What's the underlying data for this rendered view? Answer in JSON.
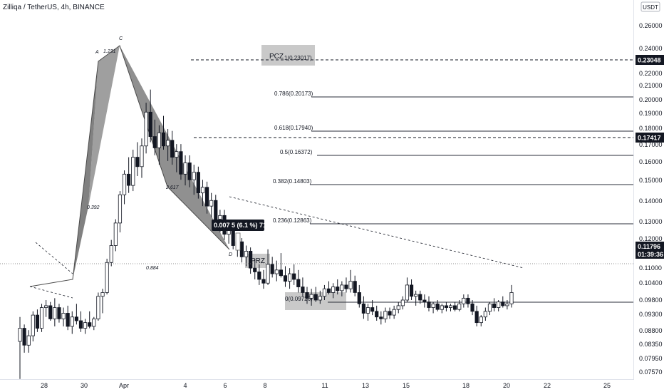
{
  "header": {
    "title": "Zilliqa / TetherUS, 4h, BINANCE",
    "currency": "USDT"
  },
  "colors": {
    "candle": "#131722",
    "pattern_fill": "#6b6b6b",
    "zone_fill": "#c9c9c9",
    "fib_line": "#2a2e39",
    "price_badge": "#131722"
  },
  "chart_data": {
    "type": "candlestick",
    "symbol": "Zilliqa / TetherUS",
    "timeframe": "4h",
    "exchange": "BINANCE",
    "y_axis_labels": [
      "0.26000",
      "0.24000",
      "0.23048",
      "0.22000",
      "0.21000",
      "0.20000",
      "0.19000",
      "0.18000",
      "0.17417",
      "0.17000",
      "0.16000",
      "0.15000",
      "0.14000",
      "0.13000",
      "0.12000",
      "0.11796",
      "0.11000",
      "0.10400",
      "0.09800",
      "0.09300",
      "0.08800",
      "0.08350",
      "0.07950",
      "0.07570"
    ],
    "ylim": [
      0.0735,
      0.2705
    ],
    "x_axis_labels": [
      "28",
      "30",
      "Apr",
      "4",
      "6",
      "8",
      "11",
      "13",
      "15",
      "18",
      "20",
      "22",
      "25"
    ],
    "price_badges": [
      {
        "value": "0.23048"
      },
      {
        "value": "0.17417"
      },
      {
        "value": "0.11796",
        "sub": "01:39:36"
      }
    ],
    "fib_levels": [
      {
        "label": "1(0.23017)",
        "value": 0.23017
      },
      {
        "label": "0.786(0.20173)",
        "value": 0.20173
      },
      {
        "label": "0.618(0.17940)",
        "value": 0.1794
      },
      {
        "label": "0.5(0.16372)",
        "value": 0.16372
      },
      {
        "label": "0.382(0.14803)",
        "value": 0.14803
      },
      {
        "label": "0.236(0.12863)",
        "value": 0.12863
      },
      {
        "label": "0(0.09726)",
        "value": 0.09726
      }
    ],
    "zones": [
      "PCZ",
      "PRZ"
    ],
    "pattern_points": [
      "A",
      "C",
      "D"
    ],
    "pattern_ratios": [
      "1.231",
      "0.392",
      "2.617",
      "0.884"
    ],
    "measure_label": "0.007 5 (6.1 %) 715",
    "candles": [
      [
        0.092,
        0.105,
        0.072,
        0.099
      ],
      [
        0.099,
        0.101,
        0.086,
        0.09
      ],
      [
        0.09,
        0.098,
        0.086,
        0.095
      ],
      [
        0.095,
        0.108,
        0.092,
        0.106
      ],
      [
        0.106,
        0.109,
        0.097,
        0.099
      ],
      [
        0.099,
        0.112,
        0.097,
        0.11
      ],
      [
        0.11,
        0.114,
        0.105,
        0.111
      ],
      [
        0.111,
        0.113,
        0.103,
        0.104
      ],
      [
        0.104,
        0.115,
        0.1,
        0.11
      ],
      [
        0.11,
        0.112,
        0.102,
        0.104
      ],
      [
        0.104,
        0.11,
        0.1,
        0.107
      ],
      [
        0.107,
        0.111,
        0.098,
        0.1
      ],
      [
        0.1,
        0.108,
        0.096,
        0.105
      ],
      [
        0.105,
        0.112,
        0.101,
        0.103
      ],
      [
        0.103,
        0.108,
        0.097,
        0.099
      ],
      [
        0.099,
        0.104,
        0.096,
        0.102
      ],
      [
        0.102,
        0.108,
        0.099,
        0.1
      ],
      [
        0.1,
        0.105,
        0.098,
        0.104
      ],
      [
        0.104,
        0.118,
        0.103,
        0.116
      ],
      [
        0.116,
        0.12,
        0.107,
        0.118
      ],
      [
        0.118,
        0.136,
        0.117,
        0.134
      ],
      [
        0.134,
        0.146,
        0.132,
        0.143
      ],
      [
        0.143,
        0.157,
        0.14,
        0.155
      ],
      [
        0.155,
        0.172,
        0.15,
        0.17
      ],
      [
        0.17,
        0.183,
        0.165,
        0.181
      ],
      [
        0.181,
        0.19,
        0.171,
        0.175
      ],
      [
        0.175,
        0.194,
        0.172,
        0.19
      ],
      [
        0.19,
        0.198,
        0.18,
        0.185
      ],
      [
        0.185,
        0.2,
        0.179,
        0.196
      ],
      [
        0.196,
        0.219,
        0.192,
        0.214
      ],
      [
        0.214,
        0.226,
        0.198,
        0.201
      ],
      [
        0.201,
        0.21,
        0.191,
        0.195
      ],
      [
        0.195,
        0.207,
        0.186,
        0.203
      ],
      [
        0.203,
        0.212,
        0.194,
        0.196
      ],
      [
        0.196,
        0.205,
        0.188,
        0.199
      ],
      [
        0.199,
        0.204,
        0.186,
        0.19
      ],
      [
        0.19,
        0.197,
        0.182,
        0.193
      ],
      [
        0.193,
        0.197,
        0.178,
        0.181
      ],
      [
        0.181,
        0.191,
        0.175,
        0.187
      ],
      [
        0.187,
        0.191,
        0.174,
        0.178
      ],
      [
        0.178,
        0.186,
        0.17,
        0.182
      ],
      [
        0.182,
        0.185,
        0.168,
        0.171
      ],
      [
        0.171,
        0.178,
        0.164,
        0.174
      ],
      [
        0.174,
        0.177,
        0.16,
        0.164
      ],
      [
        0.164,
        0.171,
        0.158,
        0.167
      ],
      [
        0.167,
        0.17,
        0.154,
        0.157
      ],
      [
        0.157,
        0.162,
        0.15,
        0.159
      ],
      [
        0.159,
        0.162,
        0.146,
        0.149
      ],
      [
        0.149,
        0.156,
        0.144,
        0.152
      ],
      [
        0.152,
        0.156,
        0.141,
        0.143
      ],
      [
        0.143,
        0.148,
        0.137,
        0.145
      ],
      [
        0.145,
        0.147,
        0.134,
        0.137
      ],
      [
        0.137,
        0.143,
        0.132,
        0.14
      ],
      [
        0.14,
        0.142,
        0.128,
        0.131
      ],
      [
        0.131,
        0.136,
        0.125,
        0.129
      ],
      [
        0.129,
        0.133,
        0.122,
        0.125
      ],
      [
        0.125,
        0.13,
        0.12,
        0.123
      ],
      [
        0.123,
        0.141,
        0.122,
        0.133
      ],
      [
        0.133,
        0.137,
        0.126,
        0.128
      ],
      [
        0.128,
        0.135,
        0.124,
        0.13
      ],
      [
        0.13,
        0.139,
        0.126,
        0.127
      ],
      [
        0.127,
        0.132,
        0.121,
        0.124
      ],
      [
        0.124,
        0.131,
        0.12,
        0.128
      ],
      [
        0.128,
        0.133,
        0.122,
        0.125
      ],
      [
        0.125,
        0.13,
        0.118,
        0.121
      ],
      [
        0.121,
        0.126,
        0.116,
        0.118
      ],
      [
        0.118,
        0.121,
        0.112,
        0.115
      ],
      [
        0.115,
        0.12,
        0.111,
        0.117
      ],
      [
        0.117,
        0.121,
        0.113,
        0.114
      ],
      [
        0.114,
        0.119,
        0.112,
        0.116
      ],
      [
        0.116,
        0.122,
        0.114,
        0.12
      ],
      [
        0.12,
        0.124,
        0.117,
        0.118
      ],
      [
        0.118,
        0.123,
        0.115,
        0.121
      ],
      [
        0.121,
        0.125,
        0.117,
        0.119
      ],
      [
        0.119,
        0.124,
        0.116,
        0.122
      ],
      [
        0.122,
        0.126,
        0.118,
        0.12
      ],
      [
        0.12,
        0.13,
        0.118,
        0.124
      ],
      [
        0.124,
        0.127,
        0.116,
        0.118
      ],
      [
        0.118,
        0.122,
        0.11,
        0.112
      ],
      [
        0.112,
        0.116,
        0.104,
        0.107
      ],
      [
        0.107,
        0.112,
        0.103,
        0.11
      ],
      [
        0.11,
        0.114,
        0.106,
        0.108
      ],
      [
        0.108,
        0.111,
        0.103,
        0.105
      ],
      [
        0.105,
        0.108,
        0.101,
        0.104
      ],
      [
        0.104,
        0.11,
        0.102,
        0.108
      ],
      [
        0.108,
        0.11,
        0.104,
        0.106
      ],
      [
        0.106,
        0.111,
        0.104,
        0.109
      ],
      [
        0.109,
        0.113,
        0.107,
        0.111
      ],
      [
        0.111,
        0.116,
        0.109,
        0.114
      ],
      [
        0.114,
        0.126,
        0.113,
        0.122
      ],
      [
        0.122,
        0.125,
        0.114,
        0.116
      ],
      [
        0.116,
        0.119,
        0.111,
        0.117
      ],
      [
        0.117,
        0.119,
        0.112,
        0.114
      ],
      [
        0.114,
        0.117,
        0.11,
        0.113
      ],
      [
        0.113,
        0.116,
        0.108,
        0.11
      ],
      [
        0.11,
        0.113,
        0.107,
        0.112
      ],
      [
        0.112,
        0.114,
        0.108,
        0.109
      ],
      [
        0.109,
        0.112,
        0.107,
        0.111
      ],
      [
        0.111,
        0.113,
        0.108,
        0.11
      ],
      [
        0.11,
        0.112,
        0.108,
        0.111
      ],
      [
        0.111,
        0.113,
        0.108,
        0.109
      ],
      [
        0.109,
        0.114,
        0.108,
        0.112
      ],
      [
        0.112,
        0.117,
        0.11,
        0.115
      ],
      [
        0.115,
        0.117,
        0.11,
        0.112
      ],
      [
        0.112,
        0.114,
        0.106,
        0.108
      ],
      [
        0.108,
        0.111,
        0.1,
        0.102
      ],
      [
        0.102,
        0.106,
        0.1,
        0.105
      ],
      [
        0.105,
        0.11,
        0.103,
        0.108
      ],
      [
        0.108,
        0.113,
        0.106,
        0.112
      ],
      [
        0.112,
        0.115,
        0.108,
        0.11
      ],
      [
        0.11,
        0.114,
        0.108,
        0.113
      ],
      [
        0.113,
        0.116,
        0.11,
        0.111
      ],
      [
        0.111,
        0.114,
        0.109,
        0.112
      ],
      [
        0.112,
        0.122,
        0.11,
        0.118
      ]
    ]
  }
}
